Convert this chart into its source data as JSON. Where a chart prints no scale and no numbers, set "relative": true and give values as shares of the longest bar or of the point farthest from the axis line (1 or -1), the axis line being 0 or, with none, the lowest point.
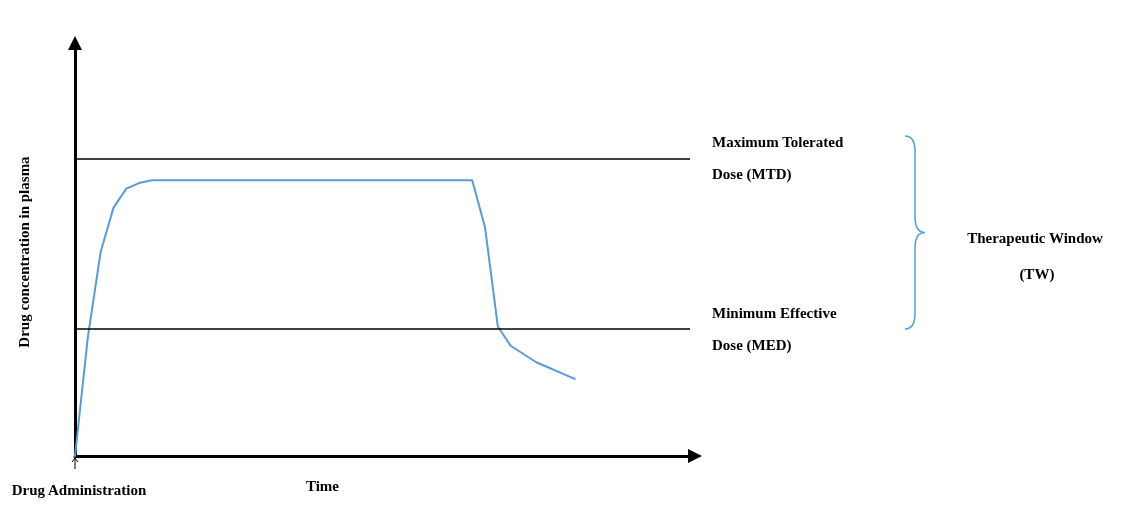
{
  "chart_data": {
    "type": "line",
    "relative": true,
    "xlabel": "Time",
    "ylabel": "Drug concentration in plasma",
    "grid": false,
    "marker": "none",
    "line_style": "solid",
    "color": "#5b9bd5",
    "categories": [
      null,
      null,
      null,
      null,
      null,
      null,
      null,
      null,
      null,
      null,
      null,
      null,
      null,
      null,
      null,
      null,
      null,
      null,
      null,
      null,
      null,
      null,
      null,
      null,
      null,
      null,
      null,
      null,
      null,
      null,
      null,
      null,
      null,
      null,
      null,
      null,
      null,
      null,
      null,
      null,
      null,
      null,
      null,
      null,
      null,
      null,
      null,
      null,
      null
    ],
    "values": [
      0,
      0.43,
      0.74,
      0.9,
      0.97,
      0.99,
      1,
      1,
      1,
      1,
      1,
      1,
      1,
      1,
      1,
      1,
      1,
      1,
      1,
      1,
      1,
      1,
      1,
      1,
      1,
      1,
      1,
      1,
      1,
      1,
      1,
      1,
      0.83,
      0.47,
      0.4,
      0.37,
      0.34,
      0.32,
      0.3,
      0.28,
      null,
      null,
      null,
      null,
      null,
      null,
      null,
      null,
      null
    ],
    "ref_lines": [
      {
        "axis": "y",
        "value": 1.08,
        "label": "Maximum Tolerated Dose (MTD)",
        "color": "#000000"
      },
      {
        "axis": "y",
        "value": 0.46,
        "label": "Minimum Effective Dose (MED)",
        "color": "#000000"
      }
    ],
    "annotations": [
      "Drug Administration",
      "Therapeutic Window (TW)"
    ]
  }
}
